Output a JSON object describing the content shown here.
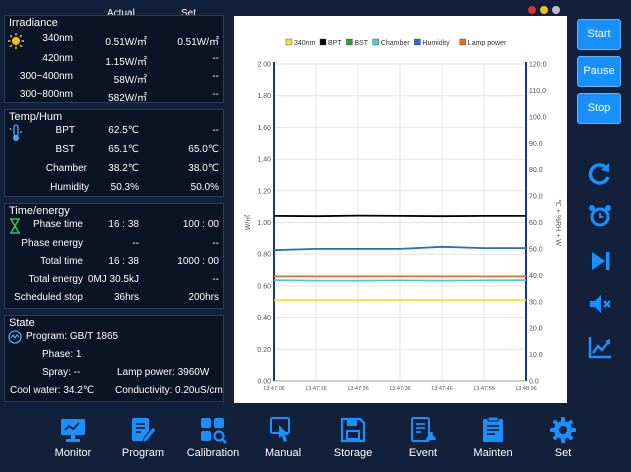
{
  "header": {
    "actual": "Actual",
    "set": "Set"
  },
  "irradiance": {
    "title": "Irradiance",
    "rows": [
      {
        "label": "340nm",
        "actual": "0.51W/㎡",
        "set": "0.51W/㎡"
      },
      {
        "label": "420nm",
        "actual": "1.15W/㎡",
        "set": "--"
      },
      {
        "label": "300~400nm",
        "actual": "58W/㎡",
        "set": "--"
      },
      {
        "label": "300~800nm",
        "actual": "582W/㎡",
        "set": "--"
      }
    ]
  },
  "temphum": {
    "title": "Temp/Hum",
    "rows": [
      {
        "label": "BPT",
        "actual": "62.5℃",
        "set": "--"
      },
      {
        "label": "BST",
        "actual": "65.1℃",
        "set": "65.0℃"
      },
      {
        "label": "Chamber",
        "actual": "38.2℃",
        "set": "38.0℃"
      },
      {
        "label": "Humidity",
        "actual": "50.3%",
        "set": "50.0%"
      }
    ]
  },
  "timeenergy": {
    "title": "Time/energy",
    "rows": [
      {
        "label": "Phase time",
        "actual": "16 : 38",
        "set": "100 : 00"
      },
      {
        "label": "Phase energy",
        "actual": "--",
        "set": "--"
      },
      {
        "label": "Total time",
        "actual": "16 : 38",
        "set": "1000 : 00"
      },
      {
        "label": "Total energy",
        "actual": "0MJ 30.5kJ",
        "set": "--"
      },
      {
        "label": "Scheduled stop",
        "actual": "36hrs",
        "set": "200hrs"
      }
    ]
  },
  "state": {
    "title": "State",
    "program": "Program:  GB/T 1865",
    "phase": "Phase:  1",
    "spray": "Spray:  --",
    "lamp_power": "Lamp power: 3960W",
    "cool_water": "Cool water:  34.2℃",
    "conductivity": "Conductivity: 0.20uS/cm"
  },
  "controls": {
    "start": "Start",
    "pause": "Pause",
    "stop": "Stop"
  },
  "side_icons": [
    "refresh-icon",
    "alarm-clock-icon",
    "skip-next-icon",
    "mute-icon",
    "trend-chart-icon"
  ],
  "nav": [
    {
      "label": "Monitor",
      "icon": "monitor-icon"
    },
    {
      "label": "Program",
      "icon": "program-icon"
    },
    {
      "label": "Calibration",
      "icon": "calibration-icon"
    },
    {
      "label": "Manual",
      "icon": "manual-icon"
    },
    {
      "label": "Storage",
      "icon": "storage-icon"
    },
    {
      "label": "Event",
      "icon": "event-icon"
    },
    {
      "label": "Mainten",
      "icon": "maintenance-icon"
    },
    {
      "label": "Set",
      "icon": "settings-icon"
    }
  ],
  "window_dots": [
    "#e03030",
    "#f0c020",
    "#c0c0c0"
  ],
  "chart_data": {
    "type": "line",
    "ylabel": "W/㎡",
    "y2label": "℃ + %RH + W",
    "ylim": [
      0,
      2
    ],
    "y2lim": [
      0,
      120
    ],
    "yticks": [
      "0.00",
      "0.20",
      "0.40",
      "0.60",
      "0.80",
      "1.00",
      "1.20",
      "1.40",
      "1.60",
      "1.80",
      "2.00"
    ],
    "y2ticks": [
      "0.0",
      "10.0",
      "20.0",
      "30.0",
      "40.0",
      "50.0",
      "60.0",
      "70.0",
      "80.0",
      "90.0",
      "100.0",
      "110.0",
      "120.0"
    ],
    "x": [
      "13:47:06",
      "13:47:16",
      "13:47:26",
      "13:47:36",
      "13:47:46",
      "13:47:56",
      "13:48:06"
    ],
    "grid": true,
    "legend_position": "top",
    "series": [
      {
        "name": "340nm",
        "color": "#f0e040",
        "axis": "left",
        "values": [
          0.51,
          0.51,
          0.51,
          0.51,
          0.51,
          0.51,
          0.51
        ]
      },
      {
        "name": "BPT",
        "color": "#000000",
        "axis": "right",
        "values": [
          62.5,
          62.4,
          62.6,
          62.5,
          62.4,
          62.5,
          62.5
        ]
      },
      {
        "name": "BST",
        "color": "#2ea02e",
        "axis": "right",
        "values": [
          null,
          null,
          null,
          null,
          null,
          null,
          null
        ]
      },
      {
        "name": "Chamber",
        "color": "#40d0d0",
        "axis": "right",
        "values": [
          38.2,
          38.0,
          38.0,
          38.1,
          38.0,
          38.1,
          38.2
        ]
      },
      {
        "name": "Humidity",
        "color": "#1f6fd0",
        "axis": "right",
        "values": [
          49.5,
          50.0,
          50.0,
          50.0,
          50.8,
          50.3,
          50.3
        ]
      },
      {
        "name": "Lamp power",
        "color": "#e07020",
        "axis": "right",
        "values": [
          39.6,
          39.6,
          39.6,
          39.6,
          39.6,
          39.6,
          39.6
        ]
      }
    ]
  }
}
